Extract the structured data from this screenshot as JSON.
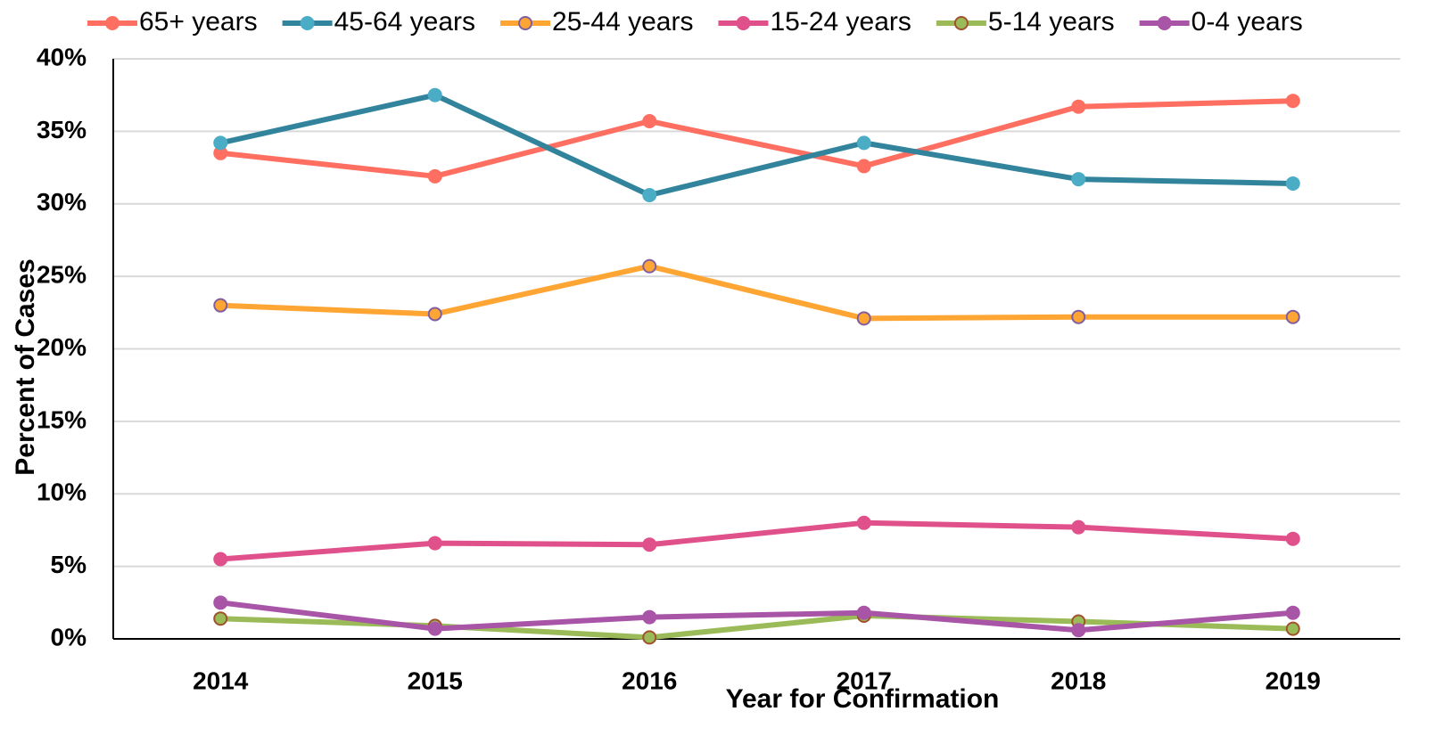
{
  "chart_data": {
    "type": "line",
    "x_label": "Year for Confirmation",
    "y_label": "Percent of Cases",
    "categories": [
      "2014",
      "2015",
      "2016",
      "2017",
      "2018",
      "2019"
    ],
    "series": [
      {
        "name": "65+ years",
        "color": "#ff6f61",
        "marker_color": "#ff6f61",
        "values": [
          33.5,
          31.9,
          35.7,
          32.6,
          36.7,
          37.1
        ]
      },
      {
        "name": "45-64 years",
        "color": "#31849b",
        "marker_color": "#4bacc6",
        "values": [
          34.2,
          37.5,
          30.6,
          34.2,
          31.7,
          31.4
        ]
      },
      {
        "name": "25-44 years",
        "color": "#ffa533",
        "marker_color": "#ffa533",
        "marker_edge": "#7f5fa0",
        "values": [
          23.0,
          22.4,
          25.7,
          22.1,
          22.2,
          22.2
        ]
      },
      {
        "name": "15-24 years",
        "color": "#e0508a",
        "marker_color": "#e0508a",
        "values": [
          5.5,
          6.6,
          6.5,
          8.0,
          7.7,
          6.9
        ]
      },
      {
        "name": "5-14 years",
        "color": "#9bbb59",
        "marker_color": "#9bbb59",
        "marker_edge": "#a0522d",
        "values": [
          1.4,
          0.9,
          0.1,
          1.6,
          1.2,
          0.7
        ]
      },
      {
        "name": "0-4 years",
        "color": "#a855a8",
        "marker_color": "#a855a8",
        "values": [
          2.5,
          0.7,
          1.5,
          1.8,
          0.6,
          1.8
        ]
      }
    ],
    "ylim": [
      0,
      40
    ],
    "yticks": [
      {
        "value": 0,
        "label": "0%"
      },
      {
        "value": 5,
        "label": "5%"
      },
      {
        "value": 10,
        "label": "10%"
      },
      {
        "value": 15,
        "label": "15%"
      },
      {
        "value": 20,
        "label": "20%"
      },
      {
        "value": 25,
        "label": "25%"
      },
      {
        "value": 30,
        "label": "30%"
      },
      {
        "value": 35,
        "label": "35%"
      },
      {
        "value": 40,
        "label": "40%"
      }
    ],
    "grid": true,
    "legend": "top"
  }
}
